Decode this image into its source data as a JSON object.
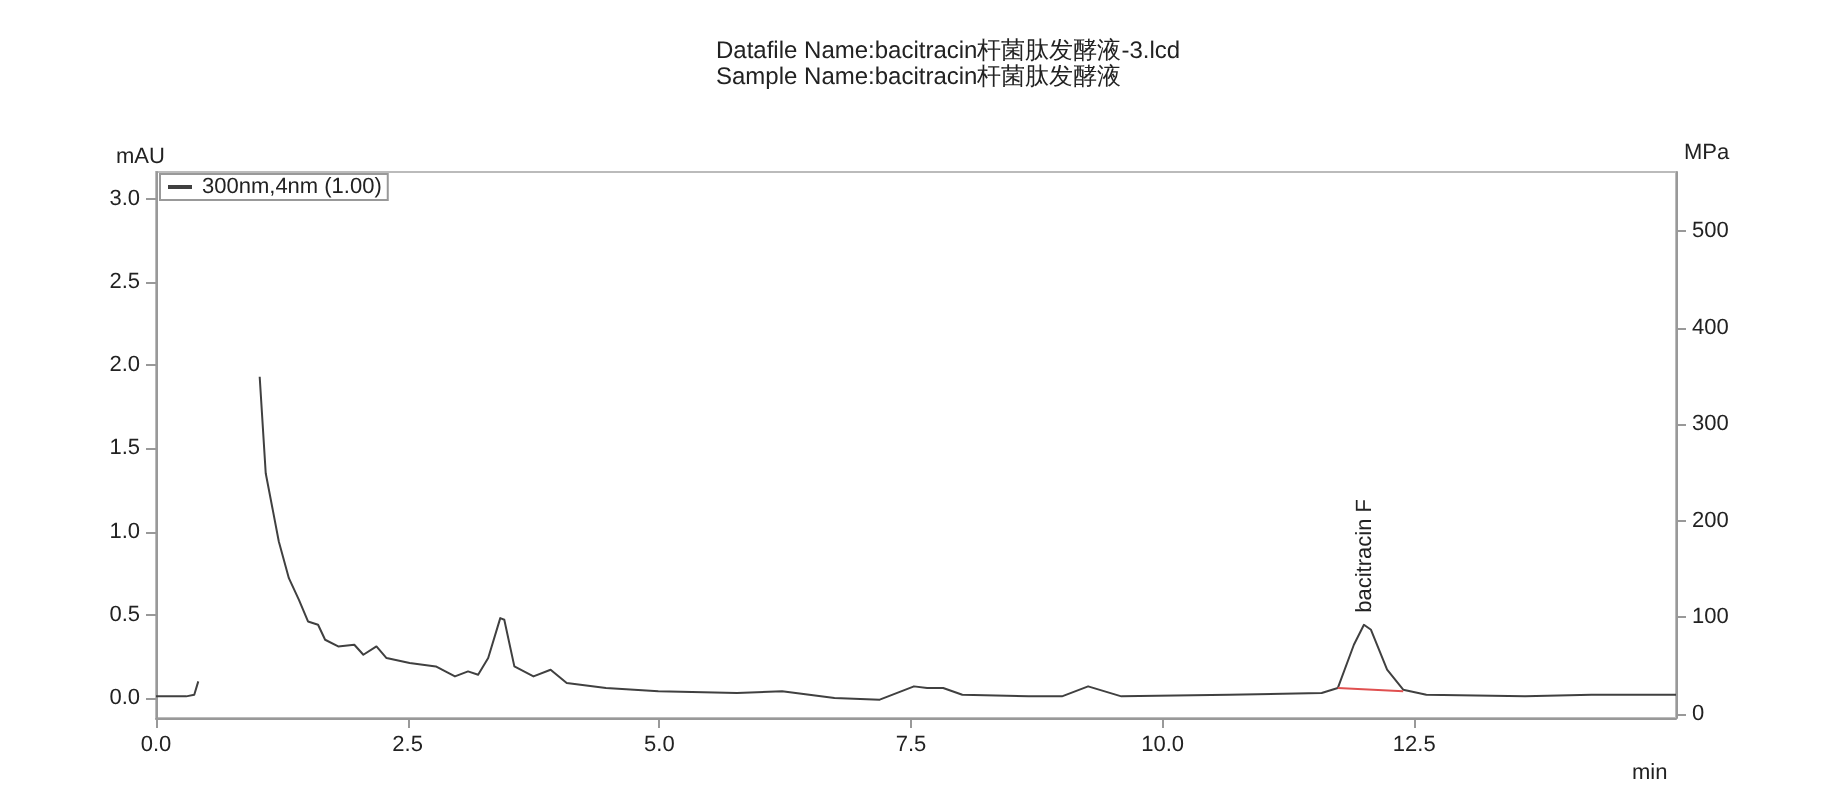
{
  "chart_data": {
    "type": "line",
    "title": "Datafile Name:bacitracin杆菌肽发酵液-3.lcd",
    "subtitle": "Sample Name:bacitracin杆菌肽发酵液",
    "xlabel": "min",
    "ylabel": "mAU",
    "y2label": "MPa",
    "xlim": [
      0,
      15.1
    ],
    "xticks": [
      {
        "value": 0,
        "label": "0.0"
      },
      {
        "value": 2.5,
        "label": "2.5"
      },
      {
        "value": 5,
        "label": "5.0"
      },
      {
        "value": 7.5,
        "label": "7.5"
      },
      {
        "value": 10,
        "label": "10.0"
      },
      {
        "value": 12.5,
        "label": "12.5"
      }
    ],
    "ylim": [
      -0.12,
      3.16
    ],
    "yticks": [
      {
        "value": 0,
        "label": "0.0"
      },
      {
        "value": 0.5,
        "label": "0.5"
      },
      {
        "value": 1,
        "label": "1.0"
      },
      {
        "value": 1.5,
        "label": "1.5"
      },
      {
        "value": 2,
        "label": "2.0"
      },
      {
        "value": 2.5,
        "label": "2.5"
      },
      {
        "value": 3,
        "label": "3.0"
      }
    ],
    "y2lim": [
      -4,
      561
    ],
    "y2ticks": [
      0,
      100,
      200,
      300,
      400,
      500
    ],
    "grid": false,
    "legend": "top left",
    "marker": "none",
    "line_style": "solid",
    "annotations": [
      {
        "text": "bacitracin F",
        "x": 12.0,
        "y": 0.44
      }
    ],
    "series": [
      {
        "name": "300nm,4nm (1.00)",
        "color": "#404040",
        "x": [
          0,
          0.3,
          0.38,
          0.42,
          0.45,
          0.93,
          1.03,
          1.09,
          1.16,
          1.22,
          1.32,
          1.42,
          1.51,
          1.61,
          1.68,
          1.81,
          1.97,
          2.06,
          2.19,
          2.29,
          2.52,
          2.78,
          2.97,
          3.1,
          3.2,
          3.3,
          3.42,
          3.46,
          3.56,
          3.75,
          3.92,
          4.08,
          4.47,
          4.99,
          5.77,
          6.22,
          6.74,
          7.19,
          7.53,
          7.66,
          7.82,
          8.01,
          8.67,
          9.0,
          9.26,
          9.59,
          10.66,
          11.58,
          11.74,
          11.9,
          12.0,
          12.07,
          12.23,
          12.39,
          12.62,
          13.6,
          14.26,
          15.1
        ],
        "values": [
          0.01,
          0.01,
          0.02,
          0.1,
          null,
          null,
          1.93,
          1.35,
          1.13,
          0.94,
          0.72,
          0.59,
          0.46,
          0.44,
          0.35,
          0.31,
          0.32,
          0.26,
          0.31,
          0.24,
          0.21,
          0.19,
          0.13,
          0.16,
          0.14,
          0.24,
          0.48,
          0.47,
          0.19,
          0.13,
          0.17,
          0.09,
          0.06,
          0.04,
          0.03,
          0.04,
          0.0,
          -0.01,
          0.07,
          0.06,
          0.06,
          0.02,
          0.01,
          0.01,
          0.07,
          0.01,
          0.02,
          0.03,
          0.06,
          0.32,
          0.44,
          0.41,
          0.17,
          0.05,
          0.02,
          0.01,
          0.02,
          0.02
        ]
      },
      {
        "color": "#e05050",
        "x": [
          11.74,
          12.39
        ],
        "values": [
          0.06,
          0.04
        ]
      }
    ]
  }
}
